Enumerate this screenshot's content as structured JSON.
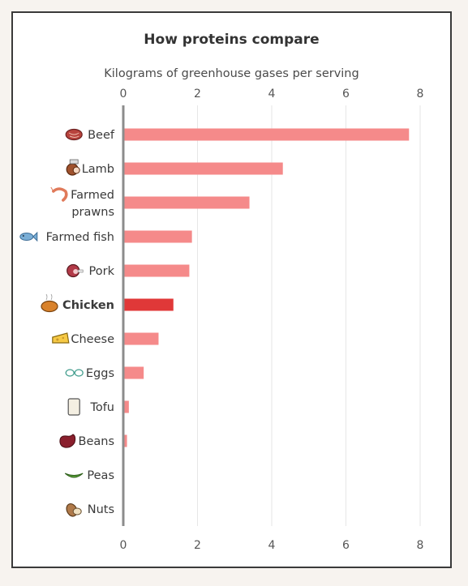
{
  "chart_data": {
    "type": "bar",
    "orientation": "horizontal",
    "title": "How proteins compare",
    "subtitle": "Kilograms of greenhouse gases per serving",
    "xlim": [
      0,
      8
    ],
    "xticks": [
      0,
      2,
      4,
      6,
      8
    ],
    "grid": true,
    "categories": [
      {
        "label": [
          "Beef"
        ],
        "value": 7.7,
        "icon": "steak-icon",
        "highlight": false
      },
      {
        "label": [
          "Lamb"
        ],
        "value": 4.3,
        "icon": "lamb-chop-icon",
        "highlight": false
      },
      {
        "label": [
          "Farmed",
          "prawns"
        ],
        "value": 3.4,
        "icon": "prawn-icon",
        "highlight": false
      },
      {
        "label": [
          "Farmed fish"
        ],
        "value": 1.85,
        "icon": "fish-icon",
        "highlight": false
      },
      {
        "label": [
          "Pork"
        ],
        "value": 1.78,
        "icon": "ham-icon",
        "highlight": false
      },
      {
        "label": [
          "Chicken"
        ],
        "value": 1.35,
        "icon": "roast-chicken-icon",
        "highlight": true
      },
      {
        "label": [
          "Cheese"
        ],
        "value": 0.95,
        "icon": "cheese-icon",
        "highlight": false
      },
      {
        "label": [
          "Eggs"
        ],
        "value": 0.55,
        "icon": "eggs-icon",
        "highlight": false
      },
      {
        "label": [
          "Tofu"
        ],
        "value": 0.15,
        "icon": "tofu-icon",
        "highlight": false
      },
      {
        "label": [
          "Beans"
        ],
        "value": 0.1,
        "icon": "bean-icon",
        "highlight": false
      },
      {
        "label": [
          "Peas"
        ],
        "value": 0.0,
        "icon": "pea-pod-icon",
        "highlight": false
      },
      {
        "label": [
          "Nuts"
        ],
        "value": 0.0,
        "icon": "nuts-icon",
        "highlight": false
      }
    ],
    "colors": {
      "bar": "#f58a8a",
      "highlight": "#e03838",
      "axis": "#8c8c8c",
      "grid": "#e6e6e6"
    }
  }
}
